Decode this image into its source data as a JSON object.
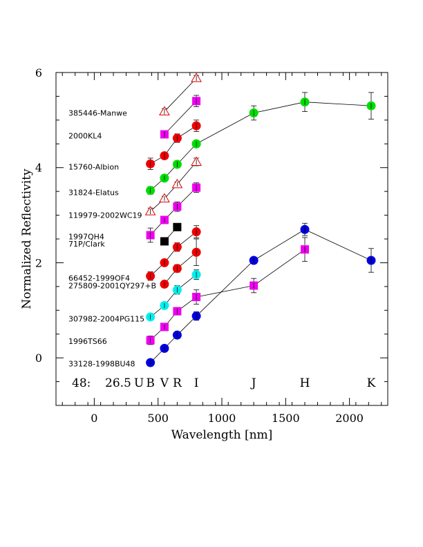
{
  "chart_data": {
    "type": "scatter",
    "xlabel": "Wavelength [nm]",
    "ylabel": "Normalized Reflectivity",
    "xlim": [
      -300,
      2300
    ],
    "ylim": [
      -1,
      6
    ],
    "x_ticks": [
      0,
      500,
      1000,
      1500,
      2000
    ],
    "y_ticks": [
      0,
      2,
      4,
      6
    ],
    "grid": false,
    "band_row": {
      "prefix": "48:",
      "magnitude": "26.5",
      "y": -0.52,
      "bands": [
        {
          "label": "U",
          "x": 350
        },
        {
          "label": "B",
          "x": 440
        },
        {
          "label": "V",
          "x": 550
        },
        {
          "label": "R",
          "x": 650
        },
        {
          "label": "I",
          "x": 800
        },
        {
          "label": "J",
          "x": 1250
        },
        {
          "label": "H",
          "x": 1650
        },
        {
          "label": "K",
          "x": 2170
        }
      ]
    },
    "series": [
      {
        "name": "385446-Manwe",
        "label_y": 5.15,
        "marker": "triangle",
        "color": "#dd0000",
        "points": [
          [
            550,
            5.18,
            0.06
          ],
          [
            800,
            5.88,
            0.06
          ]
        ]
      },
      {
        "name": "2000KL4",
        "label_y": 4.67,
        "marker": "square",
        "color": "#ee00ee",
        "points": [
          [
            550,
            4.7,
            0.06
          ],
          [
            800,
            5.4,
            0.12
          ]
        ]
      },
      {
        "name": "15760-Albion",
        "label_y": 4.02,
        "marker": "circle",
        "color": "#ee0000",
        "points": [
          [
            440,
            4.08,
            0.12
          ],
          [
            550,
            4.25,
            0.06
          ],
          [
            650,
            4.62,
            0.09
          ],
          [
            800,
            4.88,
            0.12
          ]
        ]
      },
      {
        "name": "",
        "label_y": null,
        "marker": "circle",
        "color": "#00dd00",
        "points": [
          [
            800,
            4.5,
            0.06
          ],
          [
            1250,
            5.15,
            0.15
          ],
          [
            1650,
            5.38,
            0.2
          ],
          [
            2170,
            5.3,
            0.28
          ]
        ]
      },
      {
        "name": "31824-Elatus",
        "label_y": 3.48,
        "marker": "circle",
        "color": "#00dd00",
        "points": [
          [
            440,
            3.52,
            0.08
          ],
          [
            550,
            3.78,
            0.05
          ],
          [
            650,
            4.07,
            0.06
          ],
          [
            800,
            4.5,
            0.06
          ]
        ]
      },
      {
        "name": "119979-2002WC19",
        "label_y": 3.0,
        "marker": "triangle",
        "color": "#dd0000",
        "points": [
          [
            440,
            3.08,
            0.07
          ],
          [
            550,
            3.35,
            0.05
          ],
          [
            650,
            3.65,
            0.05
          ],
          [
            800,
            4.12,
            0.08
          ]
        ]
      },
      {
        "name": "1997QH4",
        "label_y": 2.55,
        "marker": "square",
        "color": "#ee00ee",
        "points": [
          [
            440,
            2.58,
            0.15
          ],
          [
            550,
            2.9,
            0.05
          ],
          [
            650,
            3.18,
            0.1
          ],
          [
            800,
            3.58,
            0.1
          ]
        ]
      },
      {
        "name": "71P/Clark",
        "label_y": 2.4,
        "marker": "square",
        "color": "#000000",
        "points": [
          [
            550,
            2.45,
            0.05
          ],
          [
            650,
            2.75,
            0.05
          ]
        ]
      },
      {
        "name": "66452-1999OF4",
        "label_y": 1.68,
        "marker": "circle",
        "color": "#ee0000",
        "points": [
          [
            440,
            1.72,
            0.09
          ],
          [
            550,
            2.0,
            0.05
          ],
          [
            650,
            2.33,
            0.09
          ],
          [
            800,
            2.65,
            0.13
          ]
        ]
      },
      {
        "name": "275809-2001QY297+B",
        "label_y": 1.52,
        "marker": "circle",
        "color": "#ee0000",
        "points": [
          [
            550,
            1.55,
            0.05
          ],
          [
            650,
            1.88,
            0.08
          ],
          [
            800,
            2.22,
            0.28
          ]
        ]
      },
      {
        "name": "307982-2004PG115",
        "label_y": 0.82,
        "marker": "circle",
        "color": "#00eeee",
        "points": [
          [
            440,
            0.86,
            0.05
          ],
          [
            550,
            1.1,
            0.05
          ],
          [
            650,
            1.43,
            0.09
          ],
          [
            800,
            1.75,
            0.1
          ]
        ]
      },
      {
        "name": "1996TS66",
        "label_y": 0.35,
        "marker": "square",
        "color": "#ee00ee",
        "points": [
          [
            440,
            0.37,
            0.09
          ],
          [
            550,
            0.65,
            0.05
          ],
          [
            650,
            0.98,
            0.08
          ],
          [
            800,
            1.28,
            0.15
          ],
          [
            1250,
            1.52,
            0.15
          ],
          [
            1650,
            2.28,
            0.25
          ]
        ]
      },
      {
        "name": "33128-1998BU48",
        "label_y": -0.12,
        "marker": "circle",
        "color": "#0000dd",
        "points": [
          [
            440,
            -0.1,
            0.07
          ],
          [
            550,
            0.2,
            0.05
          ],
          [
            650,
            0.48,
            0.05
          ],
          [
            800,
            0.88,
            0.09
          ],
          [
            1250,
            2.05,
            0.05
          ],
          [
            1650,
            2.7,
            0.13
          ],
          [
            2170,
            2.05,
            0.25
          ]
        ]
      }
    ]
  }
}
